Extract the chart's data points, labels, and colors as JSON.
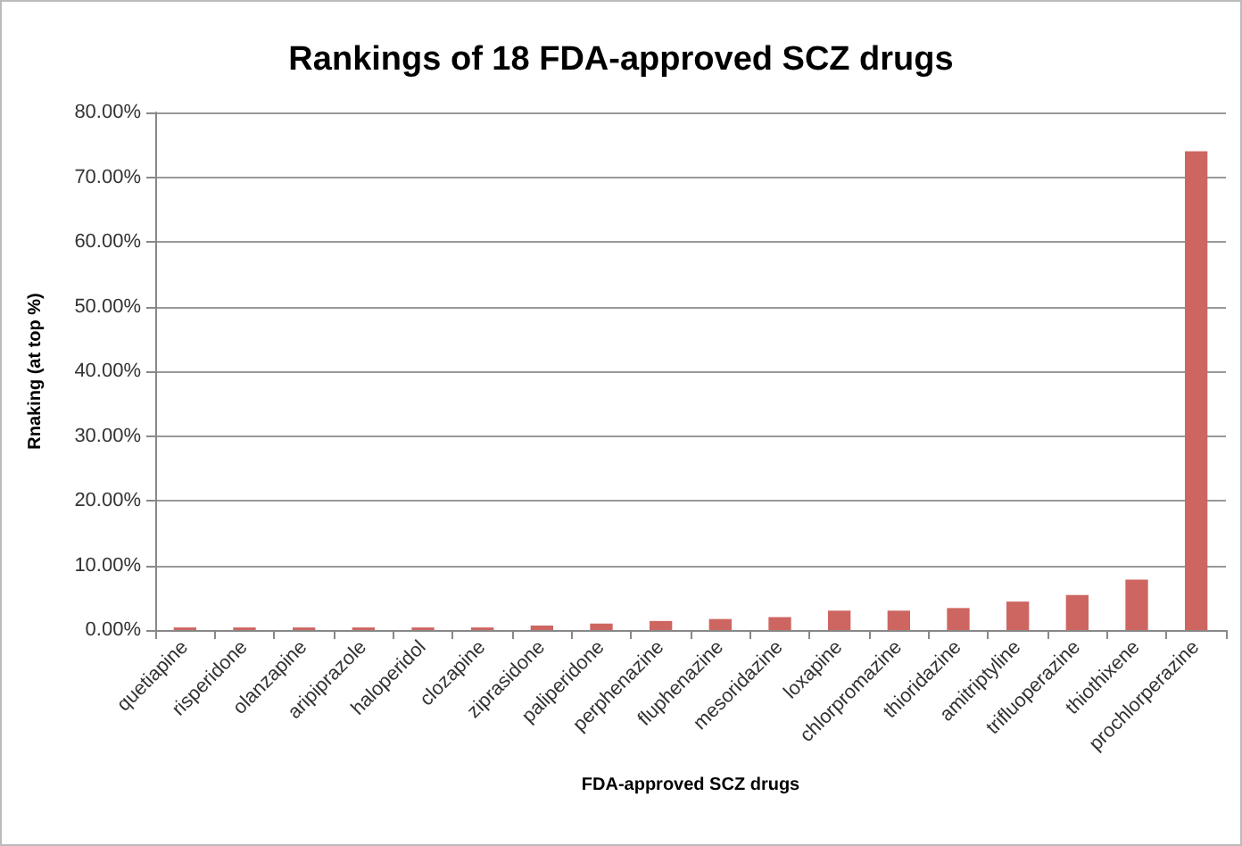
{
  "chart_data": {
    "type": "bar",
    "title": "Rankings of 18 FDA-approved SCZ drugs",
    "xlabel": "FDA-approved SCZ drugs",
    "ylabel": "Rnaking (at top %)",
    "categories": [
      "quetiapine",
      "risperidone",
      "olanzapine",
      "aripiprazole",
      "haloperidol",
      "clozapine",
      "ziprasidone",
      "paliperidone",
      "perphenazine",
      "fluphenazine",
      "mesoridazine",
      "loxapine",
      "chlorpromazine",
      "thioridazine",
      "amitriptyline",
      "trifluoperazine",
      "thiothixene",
      "prochlorperazine"
    ],
    "values": [
      0.4,
      0.4,
      0.4,
      0.4,
      0.4,
      0.4,
      0.7,
      1.0,
      1.4,
      1.7,
      2.0,
      3.0,
      3.0,
      3.4,
      4.4,
      5.4,
      7.8,
      74.0
    ],
    "color": "#cd6661",
    "ylim": [
      0,
      80
    ],
    "yticks": [
      {
        "value": 0,
        "label": "0.00%"
      },
      {
        "value": 10,
        "label": "10.00%"
      },
      {
        "value": 20,
        "label": "20.00%"
      },
      {
        "value": 30,
        "label": "30.00%"
      },
      {
        "value": 40,
        "label": "40.00%"
      },
      {
        "value": 50,
        "label": "50.00%"
      },
      {
        "value": 60,
        "label": "60.00%"
      },
      {
        "value": 70,
        "label": "70.00%"
      },
      {
        "value": 80,
        "label": "80.00%"
      }
    ],
    "grid": "y"
  }
}
